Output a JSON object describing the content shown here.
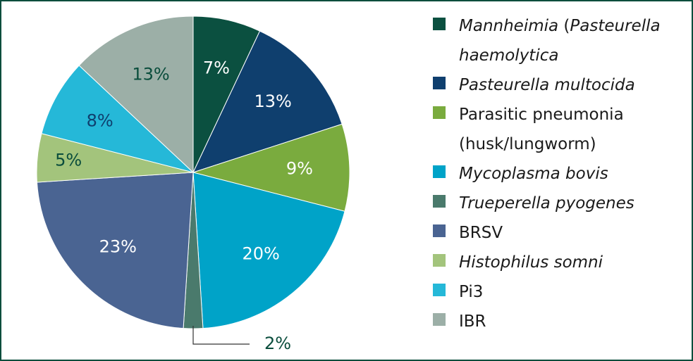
{
  "chart_data": {
    "type": "pie",
    "title": "",
    "slices": [
      {
        "label_parts": [
          {
            "text": "Mannheimia",
            "italic": true
          },
          {
            "text": " (",
            "italic": false
          },
          {
            "text": "Pasteurella",
            "italic": true
          }
        ],
        "label_line2": "haemolytica",
        "label_line2_italic": true,
        "value": 7,
        "value_label": "7%",
        "color": "#0b5040",
        "text_color": "#ffffff"
      },
      {
        "label_parts": [
          {
            "text": "Pasteurella multocida",
            "italic": true
          }
        ],
        "value": 13,
        "value_label": "13%",
        "color": "#0f3f6e",
        "text_color": "#ffffff"
      },
      {
        "label_parts": [
          {
            "text": "Parasitic pneumonia",
            "italic": false
          }
        ],
        "label_line2": "(husk/lungworm)",
        "label_line2_italic": false,
        "value": 9,
        "value_label": "9%",
        "color": "#7aab3e",
        "text_color": "#ffffff"
      },
      {
        "label_parts": [
          {
            "text": "Mycoplasma bovis",
            "italic": true
          }
        ],
        "value": 20,
        "value_label": "20%",
        "color": "#00a3c8",
        "text_color": "#ffffff"
      },
      {
        "label_parts": [
          {
            "text": "Trueperella pyogenes",
            "italic": true
          }
        ],
        "value": 2,
        "value_label": "2%",
        "color": "#4a7a6c",
        "text_color": "#0a4d3c",
        "external_label": true
      },
      {
        "label_parts": [
          {
            "text": "BRSV",
            "italic": false
          }
        ],
        "value": 23,
        "value_label": "23%",
        "color": "#4a6492",
        "text_color": "#ffffff"
      },
      {
        "label_parts": [
          {
            "text": "Histophilus somni",
            "italic": true
          }
        ],
        "value": 5,
        "value_label": "5%",
        "color": "#a3c47c",
        "text_color": "#0a4d3c"
      },
      {
        "label_parts": [
          {
            "text": "Pi3",
            "italic": false
          }
        ],
        "value": 8,
        "value_label": "8%",
        "color": "#25b8d8",
        "text_color": "#0f3f6e"
      },
      {
        "label_parts": [
          {
            "text": "IBR",
            "italic": false
          }
        ],
        "value": 13,
        "value_label": "13%",
        "color": "#9cafa7",
        "text_color": "#0a4d3c"
      }
    ],
    "legend_placement": "right",
    "border_color": "#0a4d3c"
  }
}
